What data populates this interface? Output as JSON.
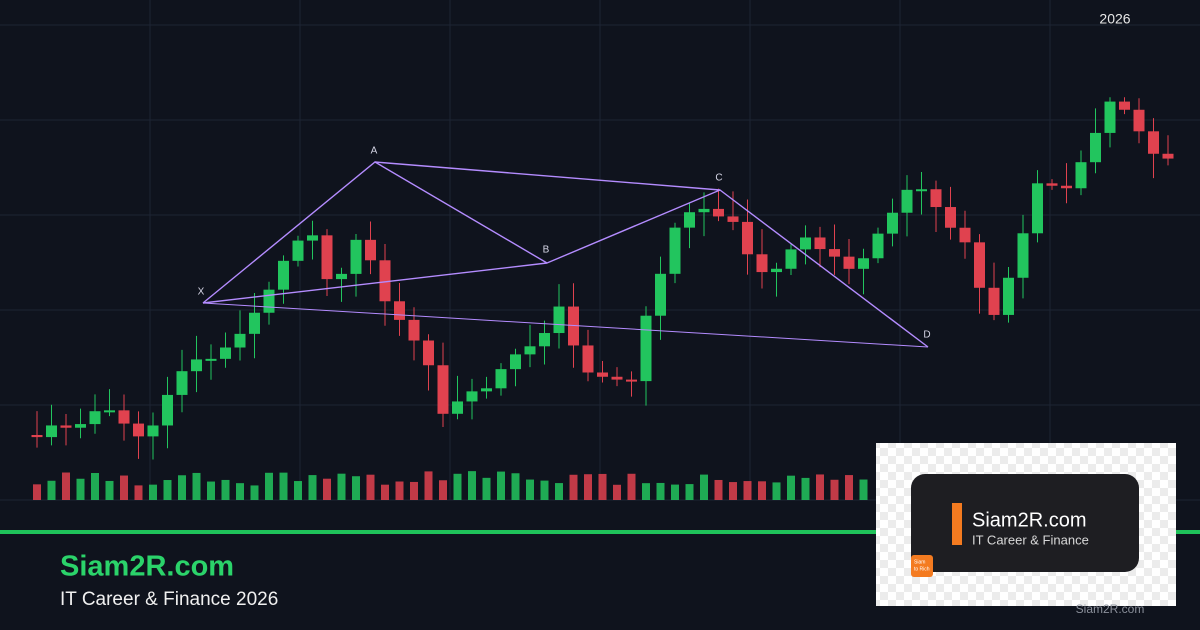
{
  "year": "2026",
  "pattern": {
    "x": "X",
    "a": "A",
    "b": "B",
    "c": "C",
    "d": "D"
  },
  "brand": {
    "title": "Siam2R.com",
    "subtitle": "IT Career & Finance 2026"
  },
  "logo": {
    "title": "Siam2R.com",
    "subtitle": "IT Career & Finance",
    "badge_line1": "Siam",
    "badge_line2": "to Rich"
  },
  "watermark": "Siam2R.com"
}
